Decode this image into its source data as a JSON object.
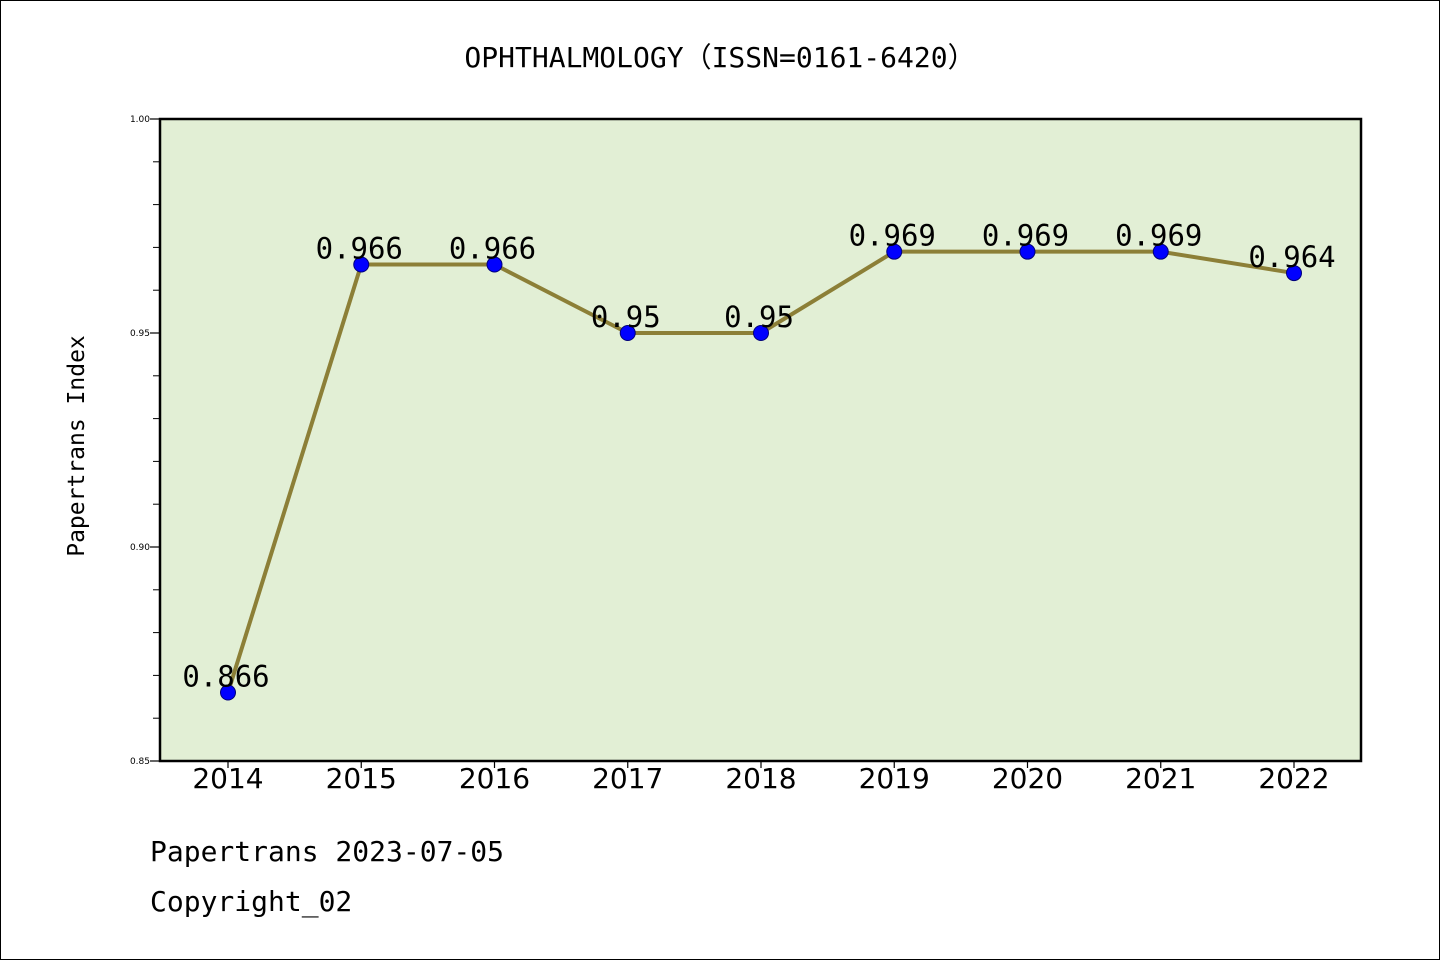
{
  "chart_data": {
    "type": "line",
    "title": "OPHTHALMOLOGY（ISSN=0161-6420）",
    "xlabel": "",
    "ylabel": "Papertrans Index",
    "x": [
      "2014",
      "2015",
      "2016",
      "2017",
      "2018",
      "2019",
      "2020",
      "2021",
      "2022"
    ],
    "series": [
      {
        "values": [
          0.866,
          0.966,
          0.966,
          0.95,
          0.95,
          0.969,
          0.969,
          0.969,
          0.964
        ],
        "data_labels": [
          "0.866",
          "0.966",
          "0.966",
          "0.95",
          "0.95",
          "0.969",
          "0.969",
          "0.969",
          "0.964"
        ]
      }
    ],
    "ylim": [
      0.85,
      1.0
    ],
    "yticks": [
      0.85,
      0.9,
      0.95,
      1.0
    ],
    "ytick_labels": [
      "0.85",
      "0.90",
      "0.95",
      "1.00"
    ],
    "grid": false,
    "legend": "none",
    "colors": {
      "plot_background": "#e2efd5",
      "line": "#8c7f37",
      "marker": "#0000ff"
    }
  },
  "footer": {
    "line1": "Papertrans 2023-07-05",
    "line2": "Copyright_02"
  }
}
